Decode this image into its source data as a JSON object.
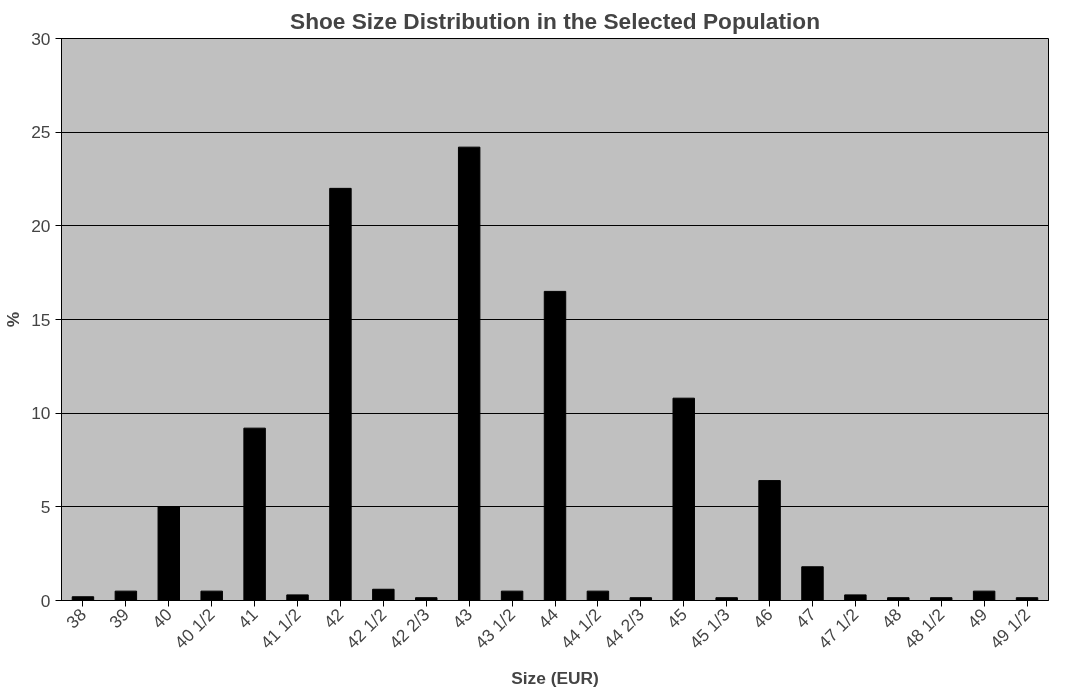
{
  "chart_data": {
    "type": "bar",
    "title": "Shoe Size Distribution in the Selected Population",
    "xlabel": "Size (EUR)",
    "ylabel": "%",
    "categories": [
      "38",
      "39",
      "40",
      "40 1/2",
      "41",
      "41 1/2",
      "42",
      "42 1/2",
      "42 2/3",
      "43",
      "43 1/2",
      "44",
      "44 1/2",
      "44 2/3",
      "45",
      "45 1/3",
      "46",
      "47",
      "47 1/2",
      "48",
      "48 1/2",
      "49",
      "49 1/2"
    ],
    "values": [
      0.2,
      0.5,
      5.0,
      0.5,
      9.2,
      0.3,
      22.0,
      0.6,
      0.15,
      24.2,
      0.5,
      16.5,
      0.5,
      0.15,
      10.8,
      0.15,
      6.4,
      1.8,
      0.3,
      0.15,
      0.15,
      0.5,
      0.15
    ],
    "color": "#000000",
    "ylim": [
      0,
      30
    ],
    "yticks": [
      0,
      5,
      10,
      15,
      20,
      25,
      30
    ],
    "grid": "y"
  }
}
